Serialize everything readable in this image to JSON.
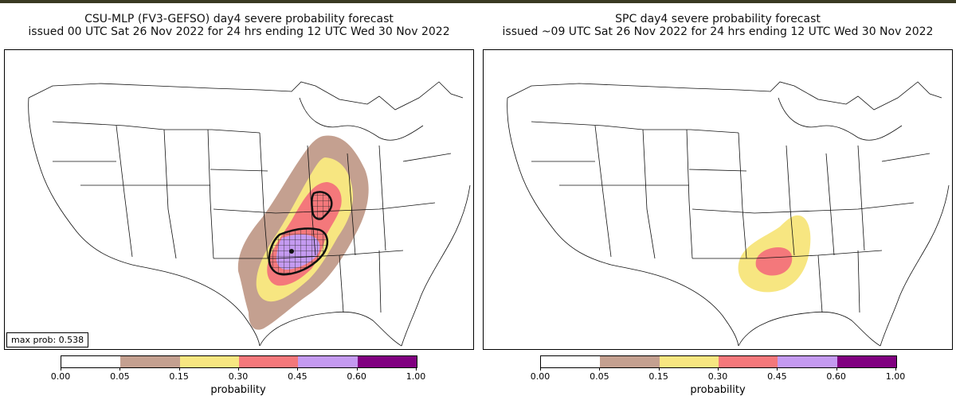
{
  "left_panel": {
    "title_line1": "CSU-MLP (FV3-GEFSO) day4 severe probability forecast",
    "title_line2": "issued 00 UTC Sat 26 Nov 2022 for 24 hrs ending 12 UTC Wed 30 Nov 2022",
    "max_prob_label": "max prob: 0.538"
  },
  "right_panel": {
    "title_line1": "SPC day4 severe probability forecast",
    "title_line2": "issued ~09 UTC Sat 26 Nov 2022 for 24 hrs ending 12 UTC Wed 30 Nov 2022"
  },
  "colorbar": {
    "label": "probability",
    "ticks": [
      "0.00",
      "0.05",
      "0.15",
      "0.30",
      "0.45",
      "0.60",
      "1.00"
    ],
    "colors": [
      "#ffffff",
      "#c4a090",
      "#f7e681",
      "#f4787b",
      "#c49af0",
      "#800080"
    ]
  },
  "colors": {
    "outline": "#111111",
    "prob_05": "#c4a090",
    "prob_15": "#f7e681",
    "prob_30": "#f4787b",
    "prob_45": "#c49af0"
  }
}
